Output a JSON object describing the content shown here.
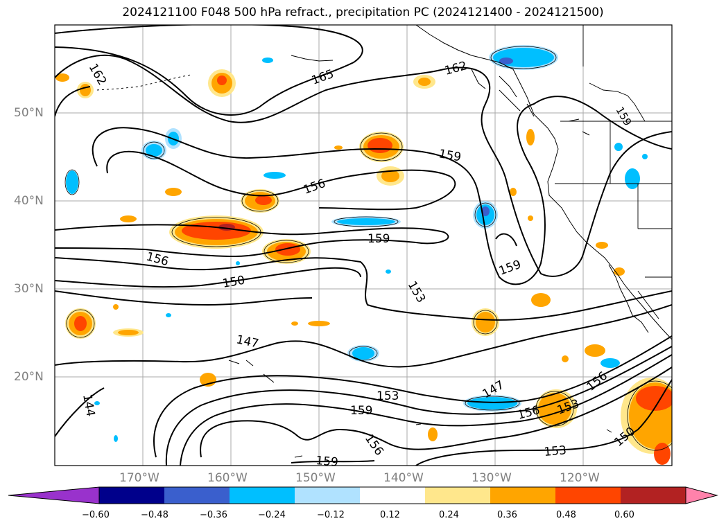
{
  "title": "2024121100 F048 500 hPa refract., precipitation PC (2024121400 - 2024121500)",
  "lat_labels": [
    "50°N",
    "40°N",
    "30°N",
    "20°N"
  ],
  "lon_labels": [
    "170°W",
    "160°W",
    "150°W",
    "140°W",
    "130°W",
    "120°W"
  ],
  "contour_labels": [
    "162",
    "165",
    "162",
    "156",
    "159",
    "156",
    "159",
    "150",
    "153",
    "159",
    "147",
    "144",
    "153",
    "159",
    "156",
    "147",
    "156",
    "153",
    "156",
    "153",
    "150",
    "159"
  ],
  "colorbar": {
    "ticks": [
      "−0.60",
      "−0.48",
      "−0.36",
      "−0.24",
      "−0.12",
      "0.12",
      "0.24",
      "0.36",
      "0.48",
      "0.60"
    ],
    "colors": [
      "#9932cc",
      "#00008b",
      "#3a5fcd",
      "#00bfff",
      "#b0e2ff",
      "#ffffff",
      "#ffe78c",
      "#ffa500",
      "#ff4500",
      "#b22222",
      "#ff82ab"
    ]
  }
}
